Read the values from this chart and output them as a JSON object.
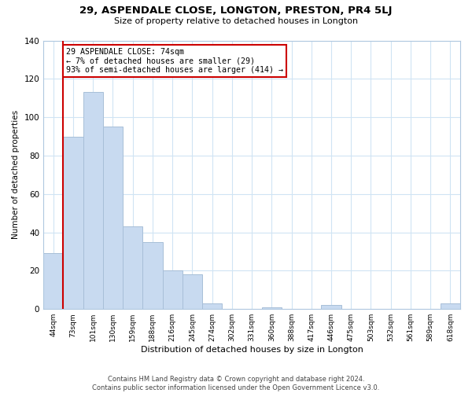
{
  "title": "29, ASPENDALE CLOSE, LONGTON, PRESTON, PR4 5LJ",
  "subtitle": "Size of property relative to detached houses in Longton",
  "xlabel": "Distribution of detached houses by size in Longton",
  "ylabel": "Number of detached properties",
  "bar_labels": [
    "44sqm",
    "73sqm",
    "101sqm",
    "130sqm",
    "159sqm",
    "188sqm",
    "216sqm",
    "245sqm",
    "274sqm",
    "302sqm",
    "331sqm",
    "360sqm",
    "388sqm",
    "417sqm",
    "446sqm",
    "475sqm",
    "503sqm",
    "532sqm",
    "561sqm",
    "589sqm",
    "618sqm"
  ],
  "bar_values": [
    29,
    90,
    113,
    95,
    43,
    35,
    20,
    18,
    3,
    0,
    0,
    1,
    0,
    0,
    2,
    0,
    0,
    0,
    0,
    0,
    3
  ],
  "bar_color": "#c8daf0",
  "bar_edge_color": "#a8bfd8",
  "vline_x": 1,
  "vline_color": "#cc0000",
  "annotation_text": "29 ASPENDALE CLOSE: 74sqm\n← 7% of detached houses are smaller (29)\n93% of semi-detached houses are larger (414) →",
  "annotation_box_color": "#ffffff",
  "annotation_box_edge": "#cc0000",
  "ylim": [
    0,
    140
  ],
  "yticks": [
    0,
    20,
    40,
    60,
    80,
    100,
    120,
    140
  ],
  "footer": "Contains HM Land Registry data © Crown copyright and database right 2024.\nContains public sector information licensed under the Open Government Licence v3.0.",
  "background_color": "#ffffff",
  "grid_color": "#d0e4f4"
}
